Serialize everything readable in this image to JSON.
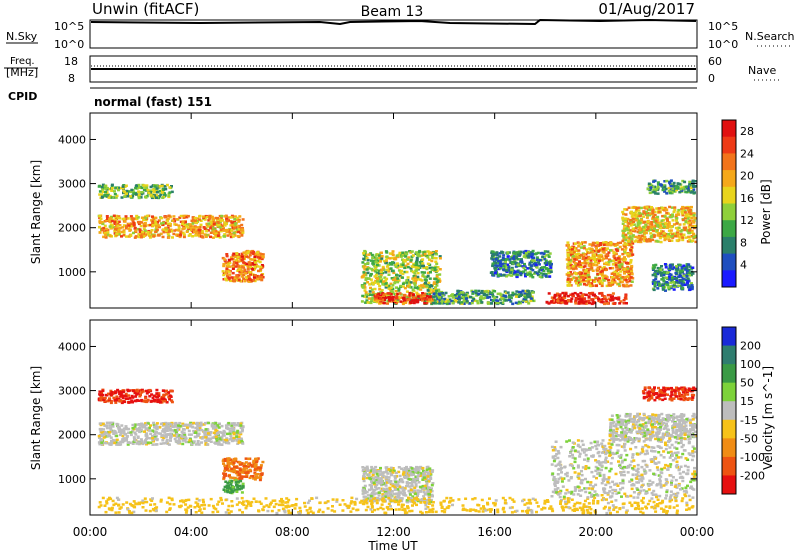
{
  "header": {
    "station": "Unwin (fitACF)",
    "beam": "Beam 13",
    "date": "01/Aug/2017"
  },
  "top_panels": {
    "nsky": {
      "label": "N.Sky",
      "ticks": [
        "10^5",
        "10^0"
      ]
    },
    "nsearch": {
      "label": "N.Search",
      "ticks": [
        "10^5",
        "10^0"
      ]
    },
    "freq": {
      "label_line1": "Freq.",
      "label_line2": "[MHz]",
      "ticks": [
        "18",
        "8"
      ]
    },
    "nave": {
      "label": "Nave",
      "ticks": [
        "60",
        "0"
      ]
    },
    "cpid": {
      "label": "CPID",
      "value": "normal (fast) 151"
    }
  },
  "chart_data": [
    {
      "type": "heatmap",
      "title": "",
      "xlabel": "Time UT",
      "ylabel": "Slant Range [km]",
      "x_ticks": [
        "00:00",
        "04:00",
        "08:00",
        "12:00",
        "16:00",
        "20:00",
        "00:00"
      ],
      "y_ticks": [
        "1000",
        "2000",
        "3000",
        "4000"
      ],
      "xlim_hours": [
        0,
        24
      ],
      "ylim_km": [
        180,
        4600
      ],
      "colorbar": {
        "label": "Power [dB]",
        "ticks": [
          "4",
          "8",
          "12",
          "16",
          "20",
          "24",
          "28"
        ],
        "range": [
          0,
          30
        ],
        "colors": [
          "#1a1aff",
          "#1f4fbf",
          "#2a7f6a",
          "#3ca845",
          "#8fcf3a",
          "#e8d41c",
          "#f5a81a",
          "#f2741b",
          "#ee3a16",
          "#e01010"
        ]
      },
      "regions": [
        {
          "t0": 0.3,
          "t1": 6.0,
          "r0": 1800,
          "r1": 2300,
          "value": 20
        },
        {
          "t0": 0.3,
          "t1": 3.2,
          "r0": 2700,
          "r1": 3000,
          "value": 12
        },
        {
          "t0": 5.2,
          "t1": 6.8,
          "r0": 800,
          "r1": 1500,
          "value": 22
        },
        {
          "t0": 10.7,
          "t1": 13.8,
          "r0": 300,
          "r1": 1500,
          "value": 14
        },
        {
          "t0": 11.2,
          "t1": 13.5,
          "r0": 300,
          "r1": 550,
          "value": 26
        },
        {
          "t0": 13.5,
          "t1": 17.5,
          "r0": 300,
          "r1": 600,
          "value": 10
        },
        {
          "t0": 15.8,
          "t1": 18.2,
          "r0": 900,
          "r1": 1500,
          "value": 8
        },
        {
          "t0": 18.0,
          "t1": 21.2,
          "r0": 300,
          "r1": 550,
          "value": 27
        },
        {
          "t0": 18.8,
          "t1": 21.4,
          "r0": 700,
          "r1": 1700,
          "value": 20
        },
        {
          "t0": 21.0,
          "t1": 23.9,
          "r0": 1700,
          "r1": 2500,
          "value": 18
        },
        {
          "t0": 22.2,
          "t1": 23.8,
          "r0": 600,
          "r1": 1200,
          "value": 8
        },
        {
          "t0": 22.0,
          "t1": 23.9,
          "r0": 2800,
          "r1": 3100,
          "value": 10
        }
      ]
    },
    {
      "type": "heatmap",
      "title": "",
      "xlabel": "Time UT",
      "ylabel": "Slant Range [km]",
      "x_ticks": [
        "00:00",
        "04:00",
        "08:00",
        "12:00",
        "16:00",
        "20:00",
        "00:00"
      ],
      "y_ticks": [
        "1000",
        "2000",
        "3000",
        "4000"
      ],
      "xlim_hours": [
        0,
        24
      ],
      "ylim_km": [
        180,
        4600
      ],
      "colorbar": {
        "label": "Velocity [m s^-1]",
        "ticks": [
          "200",
          "100",
          "50",
          "15",
          "-15",
          "-50",
          "-100",
          "-200"
        ],
        "colors": [
          "#1a2ad8",
          "#2f7d6f",
          "#3a9a45",
          "#7dd23a",
          "#bdbdbd",
          "#f6c219",
          "#f08c14",
          "#ee5412",
          "#e61010"
        ]
      },
      "regions": [
        {
          "t0": 0.3,
          "t1": 6.0,
          "r0": 1800,
          "r1": 2300,
          "value": 0
        },
        {
          "t0": 0.3,
          "t1": 3.2,
          "r0": 2750,
          "r1": 3050,
          "value": -200
        },
        {
          "t0": 5.2,
          "t1": 6.8,
          "r0": 1000,
          "r1": 1500,
          "value": -100
        },
        {
          "t0": 5.2,
          "t1": 6.0,
          "r0": 700,
          "r1": 1000,
          "value": 60
        },
        {
          "t0": 10.7,
          "t1": 13.5,
          "r0": 500,
          "r1": 1300,
          "value": 0
        },
        {
          "t0": 0.3,
          "t1": 23.9,
          "r0": 250,
          "r1": 600,
          "value": -30
        },
        {
          "t0": 18.2,
          "t1": 23.9,
          "r0": 600,
          "r1": 1900,
          "value": 0
        },
        {
          "t0": 20.5,
          "t1": 23.9,
          "r0": 1900,
          "r1": 2500,
          "value": 0
        },
        {
          "t0": 21.8,
          "t1": 23.9,
          "r0": 2800,
          "r1": 3100,
          "value": -200
        }
      ]
    }
  ]
}
